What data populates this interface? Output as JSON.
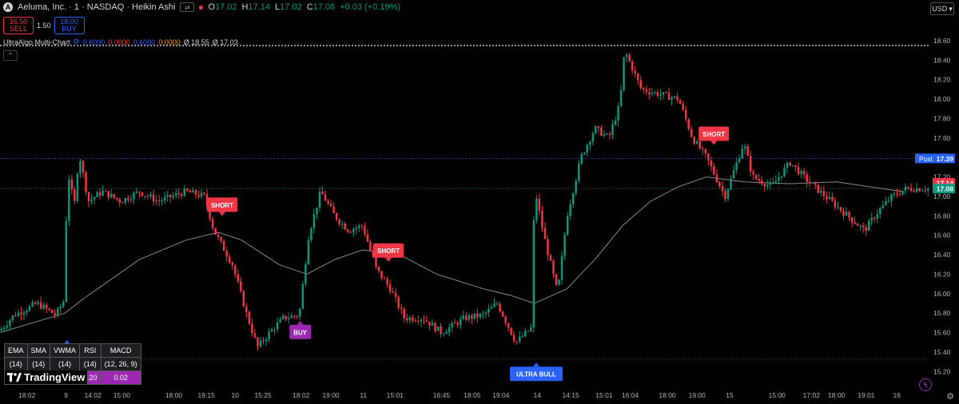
{
  "header": {
    "logo_letter": "A",
    "symbol": "Aeluma, Inc. · 1 · NASDAQ · Heikin Ashi",
    "compare_icon": "⇄",
    "ohlc": [
      {
        "k": "O",
        "v": "17.02"
      },
      {
        "k": "H",
        "v": "17.14"
      },
      {
        "k": "L",
        "v": "17.02"
      },
      {
        "k": "C",
        "v": "17.08"
      }
    ],
    "change": "+0.03 (+0.19%)"
  },
  "trade": {
    "sell_price": "16.50",
    "sell_label": "SELL",
    "spread": "1.50",
    "buy_price": "18.00",
    "buy_label": "BUY"
  },
  "indicator": {
    "name": "UltraAlgo Multi-Chart",
    "values": [
      {
        "text": "0.6000",
        "color": "#2962ff"
      },
      {
        "text": "0.0000",
        "color": "#f23645"
      },
      {
        "text": "0.6000",
        "color": "#2962ff"
      },
      {
        "text": "0.0000",
        "color": "#ff9800"
      },
      {
        "text": "Ø 18.55",
        "color": "#d1d4dc"
      },
      {
        "text": "Ø 17.03",
        "color": "#d1d4dc"
      }
    ]
  },
  "currency": "USD",
  "table": {
    "headers": [
      "EMA",
      "SMA",
      "VWMA",
      "RSI",
      "MACD"
    ],
    "periods": [
      "(14)",
      "(14)",
      "(14)",
      "(14)",
      "(12, 26, 9)"
    ],
    "values": [
      "",
      "",
      "",
      "2.20",
      "0.02"
    ]
  },
  "brand": "TradingView",
  "chart_data": {
    "type": "candlestick",
    "style": "Heikin Ashi",
    "ylim": [
      15.03,
      18.69
    ],
    "y_ticks": [
      "18.60",
      "18.40",
      "18.20",
      "18.00",
      "17.80",
      "17.60",
      "17.40",
      "17.20",
      "17.00",
      "16.80",
      "16.60",
      "16.40",
      "16.20",
      "16.00",
      "15.80",
      "15.60",
      "15.40",
      "15.20"
    ],
    "x_ticks": [
      {
        "label": "18:02",
        "x": 0.029
      },
      {
        "label": "9",
        "x": 0.071
      },
      {
        "label": "14:02",
        "x": 0.1
      },
      {
        "label": "15:00",
        "x": 0.131
      },
      {
        "label": "18:00",
        "x": 0.187
      },
      {
        "label": "19:15",
        "x": 0.222
      },
      {
        "label": "10",
        "x": 0.253
      },
      {
        "label": "15:25",
        "x": 0.283
      },
      {
        "label": "18:02",
        "x": 0.324
      },
      {
        "label": "19:00",
        "x": 0.356
      },
      {
        "label": "11",
        "x": 0.391
      },
      {
        "label": "15:01",
        "x": 0.425
      },
      {
        "label": "16:45",
        "x": 0.475
      },
      {
        "label": "18:05",
        "x": 0.508
      },
      {
        "label": "19:04",
        "x": 0.539
      },
      {
        "label": "14",
        "x": 0.578
      },
      {
        "label": "14:15",
        "x": 0.614
      },
      {
        "label": "15:01",
        "x": 0.65
      },
      {
        "label": "16:04",
        "x": 0.678
      },
      {
        "label": "18:00",
        "x": 0.718
      },
      {
        "label": "19:00",
        "x": 0.75
      },
      {
        "label": "15",
        "x": 0.785
      },
      {
        "label": "15:00",
        "x": 0.836
      },
      {
        "label": "17:02",
        "x": 0.873
      },
      {
        "label": "18:00",
        "x": 0.9
      },
      {
        "label": "19:01",
        "x": 0.932
      },
      {
        "label": "16",
        "x": 0.965
      }
    ],
    "price_path": [
      [
        0.0,
        15.62
      ],
      [
        0.015,
        15.78
      ],
      [
        0.04,
        15.9
      ],
      [
        0.06,
        15.78
      ],
      [
        0.07,
        15.95
      ],
      [
        0.072,
        17.3
      ],
      [
        0.08,
        16.9
      ],
      [
        0.085,
        17.45
      ],
      [
        0.095,
        16.95
      ],
      [
        0.11,
        17.05
      ],
      [
        0.13,
        16.95
      ],
      [
        0.15,
        17.05
      ],
      [
        0.17,
        16.95
      ],
      [
        0.2,
        17.05
      ],
      [
        0.22,
        17.0
      ],
      [
        0.23,
        16.65
      ],
      [
        0.25,
        16.3
      ],
      [
        0.265,
        15.8
      ],
      [
        0.277,
        15.45
      ],
      [
        0.29,
        15.6
      ],
      [
        0.305,
        15.75
      ],
      [
        0.322,
        15.78
      ],
      [
        0.332,
        16.6
      ],
      [
        0.345,
        17.05
      ],
      [
        0.36,
        16.8
      ],
      [
        0.375,
        16.65
      ],
      [
        0.39,
        16.7
      ],
      [
        0.405,
        16.25
      ],
      [
        0.42,
        16.05
      ],
      [
        0.435,
        15.75
      ],
      [
        0.455,
        15.75
      ],
      [
        0.475,
        15.6
      ],
      [
        0.5,
        15.75
      ],
      [
        0.52,
        15.78
      ],
      [
        0.535,
        15.9
      ],
      [
        0.555,
        15.5
      ],
      [
        0.572,
        15.65
      ],
      [
        0.575,
        17.1
      ],
      [
        0.585,
        16.6
      ],
      [
        0.6,
        16.0
      ],
      [
        0.61,
        16.8
      ],
      [
        0.625,
        17.4
      ],
      [
        0.64,
        17.7
      ],
      [
        0.655,
        17.6
      ],
      [
        0.667,
        17.95
      ],
      [
        0.672,
        18.5
      ],
      [
        0.69,
        18.1
      ],
      [
        0.71,
        18.05
      ],
      [
        0.73,
        18.0
      ],
      [
        0.745,
        17.6
      ],
      [
        0.76,
        17.4
      ],
      [
        0.78,
        17.0
      ],
      [
        0.8,
        17.55
      ],
      [
        0.81,
        17.2
      ],
      [
        0.83,
        17.1
      ],
      [
        0.85,
        17.35
      ],
      [
        0.87,
        17.15
      ],
      [
        0.9,
        16.9
      ],
      [
        0.93,
        16.65
      ],
      [
        0.945,
        16.85
      ],
      [
        0.96,
        17.0
      ],
      [
        0.975,
        17.08
      ]
    ],
    "ema_path": [
      [
        0.0,
        15.6
      ],
      [
        0.07,
        15.8
      ],
      [
        0.09,
        15.95
      ],
      [
        0.15,
        16.35
      ],
      [
        0.2,
        16.55
      ],
      [
        0.235,
        16.63
      ],
      [
        0.26,
        16.55
      ],
      [
        0.3,
        16.3
      ],
      [
        0.33,
        16.2
      ],
      [
        0.36,
        16.35
      ],
      [
        0.39,
        16.45
      ],
      [
        0.43,
        16.4
      ],
      [
        0.47,
        16.2
      ],
      [
        0.52,
        16.05
      ],
      [
        0.55,
        15.98
      ],
      [
        0.575,
        15.9
      ],
      [
        0.61,
        16.05
      ],
      [
        0.64,
        16.35
      ],
      [
        0.67,
        16.7
      ],
      [
        0.7,
        16.95
      ],
      [
        0.73,
        17.1
      ],
      [
        0.76,
        17.2
      ],
      [
        0.8,
        17.15
      ],
      [
        0.85,
        17.13
      ],
      [
        0.9,
        17.15
      ],
      [
        0.935,
        17.1
      ],
      [
        0.97,
        17.05
      ]
    ],
    "reference_lines": [
      {
        "price": 18.55,
        "style": "dotted",
        "color": "#d1d4dc"
      },
      {
        "price": 17.39,
        "style": "dotted",
        "color": "#2962ff"
      },
      {
        "price": 17.08,
        "style": "dotted",
        "color": "#089981"
      },
      {
        "price": 15.33,
        "style": "dotted",
        "color": "#555555"
      }
    ],
    "price_labels": [
      {
        "text": "Post",
        "value": "17.39",
        "price": 17.39,
        "color": "#2962ff"
      },
      {
        "text": "",
        "value": "17.14",
        "price": 17.14,
        "color": "#f23645"
      },
      {
        "text": "",
        "value": "17.08",
        "price": 17.08,
        "color": "#089981"
      }
    ],
    "signals": [
      {
        "label": "ULTRA BULL",
        "x": 0.072,
        "price": 15.48,
        "color": "#2962ff",
        "dir": "up"
      },
      {
        "label": "SHORT",
        "x": 0.239,
        "price": 16.84,
        "color": "#f23645",
        "dir": "down"
      },
      {
        "label": "BUY",
        "x": 0.323,
        "price": 15.68,
        "color": "#9c27b0",
        "dir": "up"
      },
      {
        "label": "SHORT",
        "x": 0.418,
        "price": 16.37,
        "color": "#f23645",
        "dir": "down"
      },
      {
        "label": "ULTRA BULL",
        "x": 0.577,
        "price": 15.25,
        "color": "#2962ff",
        "dir": "up"
      },
      {
        "label": "SHORT",
        "x": 0.768,
        "price": 17.57,
        "color": "#f23645",
        "dir": "down"
      }
    ],
    "colors": {
      "up": "#089981",
      "down": "#f23645",
      "ema": "#8a8a8a",
      "axis_text": "#b2b5be"
    }
  }
}
